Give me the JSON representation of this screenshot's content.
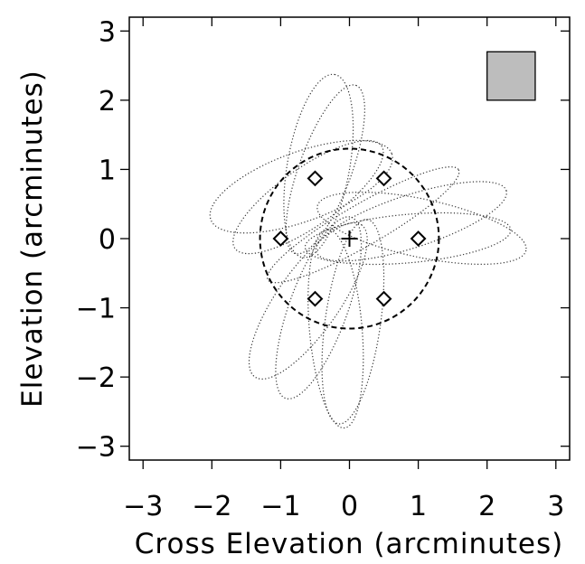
{
  "chart_data": {
    "type": "scatter",
    "title": "",
    "xlabel": "Cross Elevation (arcminutes)",
    "ylabel": "Elevation (arcminutes)",
    "xlim": [
      -3.2,
      3.2
    ],
    "ylim": [
      -3.2,
      3.2
    ],
    "xticks": [
      -3,
      -2,
      -1,
      0,
      1,
      2,
      3
    ],
    "yticks": [
      -3,
      -2,
      -1,
      0,
      1,
      2,
      3
    ],
    "xtick_labels": [
      "−3",
      "−2",
      "−1",
      "0",
      "1",
      "2",
      "3"
    ],
    "ytick_labels": [
      "−3",
      "−2",
      "−1",
      "0",
      "1",
      "2",
      "3"
    ],
    "grid": false,
    "center_marker": {
      "shape": "plus",
      "x": 0,
      "y": 0
    },
    "feed_positions": {
      "shape": "diamond",
      "points": [
        {
          "x": -0.5,
          "y": 0.87
        },
        {
          "x": 0.5,
          "y": 0.87
        },
        {
          "x": -1.0,
          "y": 0.0
        },
        {
          "x": 1.0,
          "y": 0.0
        },
        {
          "x": -0.5,
          "y": -0.87
        },
        {
          "x": 0.5,
          "y": -0.87
        }
      ]
    },
    "boundary_circle": {
      "style": "dashed",
      "cx": 0,
      "cy": 0,
      "radius": 1.3
    },
    "scan_loops": {
      "style": "dotted",
      "description_count": 12,
      "loops": [
        {
          "cx": -0.45,
          "cy": 1.05,
          "a": 1.35,
          "b": 0.45,
          "angle_deg": 80
        },
        {
          "cx": -0.35,
          "cy": 1.0,
          "a": 1.3,
          "b": 0.38,
          "angle_deg": 70
        },
        {
          "cx": -0.7,
          "cy": 0.75,
          "a": 1.4,
          "b": 0.5,
          "angle_deg": 20
        },
        {
          "cx": -0.6,
          "cy": 0.6,
          "a": 1.3,
          "b": 0.42,
          "angle_deg": 35
        },
        {
          "cx": 1.05,
          "cy": 0.15,
          "a": 1.55,
          "b": 0.42,
          "angle_deg": -12
        },
        {
          "cx": 0.9,
          "cy": 0.25,
          "a": 1.45,
          "b": 0.38,
          "angle_deg": 18
        },
        {
          "cx": 0.85,
          "cy": 0.0,
          "a": 1.5,
          "b": 0.35,
          "angle_deg": 5
        },
        {
          "cx": -0.45,
          "cy": -1.0,
          "a": 1.4,
          "b": 0.42,
          "angle_deg": 70
        },
        {
          "cx": -0.6,
          "cy": -0.9,
          "a": 1.35,
          "b": 0.45,
          "angle_deg": 55
        },
        {
          "cx": -0.2,
          "cy": -1.3,
          "a": 1.45,
          "b": 0.38,
          "angle_deg": 95
        },
        {
          "cx": 0.05,
          "cy": -1.2,
          "a": 1.5,
          "b": 0.4,
          "angle_deg": 82
        },
        {
          "cx": 0.2,
          "cy": 0.2,
          "a": 1.6,
          "b": 0.3,
          "angle_deg": 30
        }
      ]
    },
    "legend_box": {
      "color": "#bdbdbd",
      "position": "top-right",
      "x0": 2.0,
      "x1": 2.7,
      "y0": 2.0,
      "y1": 2.7
    }
  }
}
